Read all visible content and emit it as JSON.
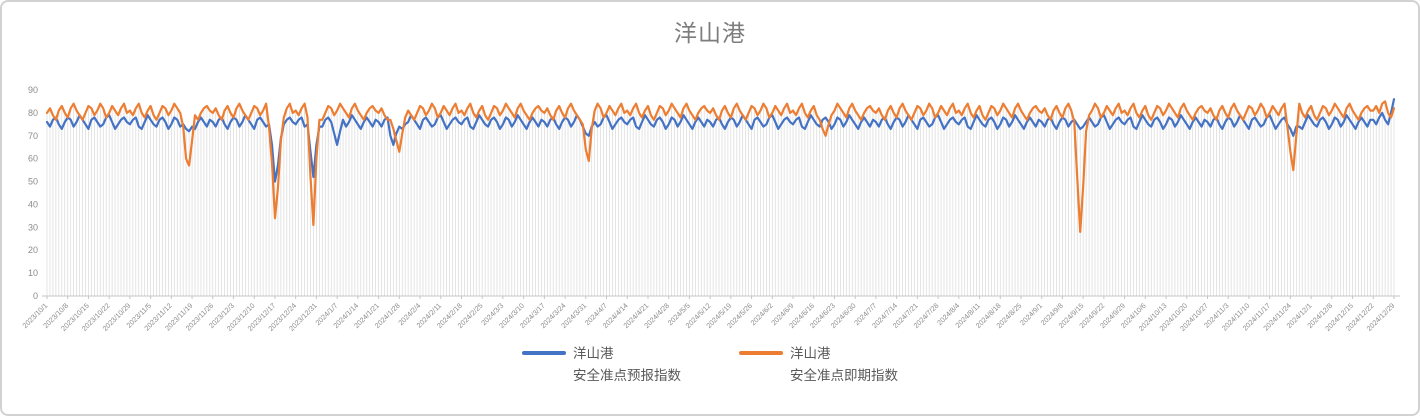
{
  "chart": {
    "title": "洋山港"
  },
  "legend": {
    "items": [
      {
        "id": "forecast",
        "line1": "洋山港",
        "line2": "安全准点预报指数",
        "color": "#4472C4"
      },
      {
        "id": "spot",
        "line1": "洋山港",
        "line2": "安全准点即期指数",
        "color": "#ED7D31"
      }
    ]
  },
  "chart_data": {
    "type": "line",
    "title": "洋山港",
    "xlabel": "",
    "ylabel": "",
    "ylim": [
      0,
      90
    ],
    "y_tick_labels": [
      "0",
      "10",
      "20",
      "30",
      "40",
      "50",
      "60",
      "70",
      "80",
      "90"
    ],
    "x_unit": "day",
    "x_start": "2023/10/1",
    "x_end": "2024/12/29",
    "x_tick_every_days": 7,
    "grid": "vertical per-day droplines, no horizontal gridlines",
    "legend_position": "bottom-center",
    "colors": {
      "forecast": "#4472C4",
      "spot": "#ED7D31",
      "dropline": "#D9D9D9",
      "axis": "#C6C6C6",
      "axis_text": "#8c8c8c",
      "title_text": "#7d7d7d"
    },
    "x_tick_labels": [
      "2023/10/1",
      "2023/10/8",
      "2023/10/15",
      "2023/10/22",
      "2023/10/29",
      "2023/11/5",
      "2023/11/12",
      "2023/11/19",
      "2023/11/26",
      "2023/12/3",
      "2023/12/10",
      "2023/12/17",
      "2023/12/24",
      "2023/12/31",
      "2024/1/7",
      "2024/1/14",
      "2024/1/21",
      "2024/1/28",
      "2024/2/4",
      "2024/2/11",
      "2024/2/18",
      "2024/2/25",
      "2024/3/3",
      "2024/3/10",
      "2024/3/17",
      "2024/3/24",
      "2024/3/31",
      "2024/4/7",
      "2024/4/14",
      "2024/4/21",
      "2024/4/28",
      "2024/5/5",
      "2024/5/12",
      "2024/5/19",
      "2024/5/26",
      "2024/6/2",
      "2024/6/9",
      "2024/6/16",
      "2024/6/23",
      "2024/6/30",
      "2024/7/7",
      "2024/7/14",
      "2024/7/21",
      "2024/7/28",
      "2024/8/4",
      "2024/8/11",
      "2024/8/18",
      "2024/8/25",
      "2024/9/1",
      "2024/9/8",
      "2024/9/15",
      "2024/9/22",
      "2024/9/29",
      "2024/10/6",
      "2024/10/13",
      "2024/10/20",
      "2024/10/27",
      "2024/11/3",
      "2024/11/10",
      "2024/11/17",
      "2024/11/24",
      "2024/12/1",
      "2024/12/8",
      "2024/12/15",
      "2024/12/22",
      "2024/12/29"
    ],
    "series": [
      {
        "name": "洋山港 安全准点预报指数",
        "color": "#4472C4",
        "values": [
          76,
          74,
          77,
          78,
          75,
          73,
          76,
          78,
          77,
          74,
          76,
          79,
          77,
          75,
          73,
          77,
          78,
          76,
          74,
          75,
          78,
          79,
          76,
          73,
          75,
          77,
          78,
          76,
          75,
          77,
          78,
          74,
          73,
          76,
          79,
          77,
          75,
          74,
          77,
          78,
          76,
          73,
          75,
          78,
          77,
          74,
          75,
          73,
          72,
          74,
          73,
          76,
          78,
          76,
          74,
          77,
          76,
          74,
          77,
          78,
          75,
          73,
          76,
          78,
          77,
          74,
          76,
          79,
          77,
          75,
          73,
          77,
          78,
          76,
          74,
          75,
          66,
          50,
          57,
          69,
          75,
          77,
          78,
          76,
          75,
          77,
          78,
          74,
          75,
          63,
          52,
          66,
          74,
          74,
          77,
          78,
          76,
          71,
          66,
          72,
          77,
          74,
          76,
          79,
          77,
          75,
          73,
          76,
          78,
          76,
          74,
          77,
          76,
          74,
          77,
          78,
          70,
          66,
          71,
          74,
          73,
          75,
          76,
          79,
          77,
          75,
          73,
          77,
          78,
          76,
          74,
          75,
          78,
          79,
          76,
          73,
          75,
          77,
          78,
          76,
          75,
          77,
          78,
          74,
          73,
          76,
          79,
          77,
          75,
          74,
          77,
          78,
          76,
          73,
          75,
          78,
          77,
          74,
          76,
          79,
          77,
          75,
          73,
          76,
          78,
          76,
          74,
          77,
          76,
          74,
          77,
          78,
          75,
          73,
          76,
          78,
          77,
          74,
          76,
          79,
          77,
          74,
          71,
          70,
          74,
          76,
          74,
          75,
          78,
          79,
          76,
          73,
          75,
          77,
          78,
          76,
          75,
          77,
          78,
          74,
          73,
          76,
          79,
          77,
          75,
          74,
          77,
          78,
          76,
          73,
          75,
          78,
          77,
          74,
          76,
          79,
          77,
          75,
          73,
          76,
          78,
          76,
          74,
          77,
          76,
          74,
          77,
          78,
          75,
          73,
          76,
          78,
          77,
          74,
          76,
          79,
          77,
          75,
          73,
          77,
          78,
          76,
          74,
          75,
          78,
          79,
          76,
          73,
          75,
          77,
          78,
          76,
          75,
          77,
          78,
          74,
          73,
          76,
          79,
          77,
          75,
          74,
          77,
          78,
          76,
          73,
          75,
          78,
          77,
          74,
          76,
          79,
          77,
          75,
          73,
          76,
          78,
          76,
          74,
          77,
          76,
          74,
          77,
          78,
          75,
          73,
          76,
          78,
          77,
          74,
          76,
          79,
          77,
          75,
          73,
          77,
          78,
          76,
          74,
          75,
          78,
          79,
          76,
          73,
          75,
          77,
          78,
          76,
          75,
          77,
          78,
          74,
          73,
          76,
          79,
          77,
          75,
          74,
          77,
          78,
          76,
          73,
          75,
          78,
          77,
          74,
          76,
          79,
          77,
          75,
          73,
          76,
          78,
          76,
          74,
          77,
          76,
          74,
          77,
          78,
          75,
          73,
          76,
          78,
          77,
          74,
          76,
          77,
          75,
          73,
          74,
          76,
          78,
          76,
          74,
          75,
          78,
          79,
          76,
          73,
          75,
          77,
          78,
          76,
          75,
          77,
          78,
          74,
          73,
          76,
          79,
          77,
          75,
          74,
          77,
          78,
          76,
          73,
          75,
          78,
          77,
          74,
          76,
          79,
          77,
          75,
          73,
          76,
          78,
          76,
          74,
          77,
          76,
          74,
          77,
          78,
          75,
          73,
          76,
          78,
          77,
          74,
          76,
          79,
          77,
          75,
          73,
          77,
          78,
          76,
          74,
          75,
          78,
          79,
          76,
          73,
          75,
          77,
          78,
          75,
          73,
          70,
          74,
          74,
          73,
          76,
          79,
          77,
          75,
          74,
          77,
          78,
          76,
          73,
          75,
          78,
          77,
          74,
          76,
          79,
          77,
          75,
          73,
          76,
          78,
          76,
          74,
          77,
          77,
          75,
          78,
          80,
          77,
          75,
          80,
          86
        ]
      },
      {
        "name": "洋山港 安全准点即期指数",
        "color": "#ED7D31",
        "values": [
          80,
          82,
          79,
          77,
          81,
          83,
          80,
          78,
          82,
          84,
          81,
          79,
          77,
          80,
          83,
          82,
          79,
          81,
          84,
          82,
          78,
          80,
          83,
          81,
          79,
          82,
          84,
          80,
          81,
          79,
          82,
          84,
          80,
          78,
          81,
          83,
          79,
          77,
          80,
          83,
          82,
          79,
          81,
          84,
          82,
          80,
          74,
          60,
          57,
          68,
          79,
          77,
          80,
          82,
          83,
          81,
          80,
          82,
          79,
          77,
          81,
          83,
          80,
          78,
          82,
          84,
          81,
          79,
          77,
          80,
          83,
          82,
          79,
          81,
          84,
          74,
          58,
          34,
          47,
          68,
          78,
          82,
          84,
          80,
          81,
          79,
          82,
          84,
          78,
          52,
          31,
          60,
          77,
          77,
          80,
          83,
          82,
          79,
          81,
          84,
          82,
          80,
          78,
          82,
          84,
          81,
          79,
          77,
          80,
          82,
          83,
          81,
          80,
          82,
          79,
          77,
          77,
          73,
          68,
          63,
          71,
          78,
          81,
          79,
          77,
          80,
          83,
          82,
          79,
          81,
          84,
          82,
          78,
          80,
          83,
          81,
          79,
          82,
          84,
          80,
          81,
          79,
          82,
          84,
          80,
          78,
          81,
          83,
          79,
          77,
          80,
          83,
          82,
          79,
          81,
          84,
          82,
          80,
          78,
          82,
          84,
          81,
          79,
          77,
          80,
          82,
          83,
          81,
          80,
          82,
          79,
          77,
          81,
          83,
          80,
          78,
          82,
          84,
          81,
          79,
          77,
          75,
          64,
          59,
          73,
          81,
          84,
          82,
          78,
          80,
          83,
          81,
          79,
          82,
          84,
          80,
          81,
          79,
          82,
          84,
          80,
          78,
          81,
          83,
          79,
          77,
          80,
          83,
          82,
          79,
          81,
          84,
          82,
          80,
          78,
          82,
          84,
          81,
          79,
          77,
          80,
          82,
          83,
          81,
          80,
          82,
          79,
          77,
          81,
          83,
          80,
          78,
          82,
          84,
          81,
          79,
          77,
          80,
          83,
          82,
          79,
          81,
          84,
          82,
          78,
          80,
          83,
          81,
          79,
          82,
          84,
          80,
          81,
          79,
          82,
          84,
          80,
          78,
          81,
          83,
          79,
          77,
          73,
          70,
          75,
          79,
          81,
          84,
          82,
          80,
          78,
          82,
          84,
          81,
          79,
          77,
          80,
          82,
          83,
          81,
          80,
          82,
          79,
          77,
          81,
          83,
          80,
          78,
          82,
          84,
          81,
          79,
          77,
          80,
          83,
          82,
          79,
          81,
          84,
          82,
          78,
          80,
          83,
          81,
          79,
          82,
          84,
          80,
          81,
          79,
          82,
          84,
          80,
          78,
          81,
          83,
          79,
          77,
          80,
          83,
          82,
          79,
          81,
          84,
          82,
          80,
          78,
          82,
          84,
          81,
          79,
          77,
          80,
          82,
          83,
          81,
          80,
          82,
          79,
          77,
          81,
          83,
          80,
          78,
          82,
          84,
          81,
          76,
          52,
          28,
          48,
          72,
          79,
          81,
          84,
          82,
          78,
          80,
          83,
          81,
          79,
          82,
          84,
          80,
          81,
          79,
          82,
          84,
          80,
          78,
          81,
          83,
          79,
          77,
          80,
          83,
          82,
          79,
          81,
          84,
          82,
          80,
          78,
          82,
          84,
          81,
          79,
          77,
          80,
          82,
          83,
          81,
          80,
          82,
          79,
          77,
          81,
          83,
          80,
          78,
          82,
          84,
          81,
          79,
          77,
          80,
          83,
          82,
          79,
          81,
          84,
          82,
          78,
          80,
          83,
          81,
          79,
          82,
          84,
          74,
          63,
          55,
          70,
          84,
          80,
          78,
          81,
          83,
          79,
          77,
          80,
          83,
          82,
          79,
          81,
          84,
          82,
          80,
          78,
          82,
          84,
          81,
          79,
          77,
          80,
          82,
          83,
          81,
          81,
          83,
          80,
          84,
          85,
          80,
          78,
          82
        ]
      }
    ]
  }
}
